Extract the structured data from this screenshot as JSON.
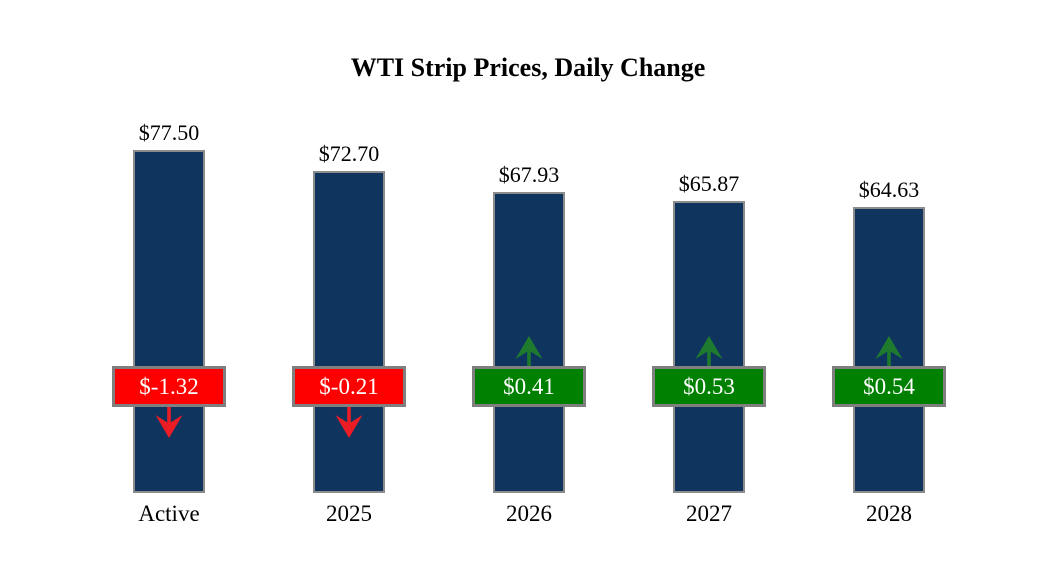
{
  "chart_data": {
    "type": "bar",
    "title": "WTI Strip Prices, Daily Change",
    "categories": [
      "Active",
      "2025",
      "2026",
      "2027",
      "2028"
    ],
    "values": [
      77.5,
      72.7,
      67.93,
      65.87,
      64.63
    ],
    "value_labels": [
      "$77.50",
      "$72.70",
      "$67.93",
      "$65.87",
      "$64.63"
    ],
    "changes": [
      -1.32,
      -0.21,
      0.41,
      0.53,
      0.54
    ],
    "change_labels": [
      "$-1.32",
      "$-0.21",
      "$0.41",
      "$0.53",
      "$0.54"
    ],
    "change_directions": [
      "down",
      "down",
      "up",
      "up",
      "up"
    ],
    "ylim": [
      0,
      77.5
    ],
    "grid": false,
    "legend_position": "none",
    "colors": {
      "bar": "#0F355E",
      "bar_border": "#8C8C8C",
      "negative_badge": "#FF0000",
      "positive_badge": "#008000",
      "badge_border": "#7F7F7F",
      "badge_text": "#FFFFFF",
      "negative_arrow": "#EC1C24",
      "positive_arrow": "#1E7B2E",
      "text": "#000000"
    }
  }
}
